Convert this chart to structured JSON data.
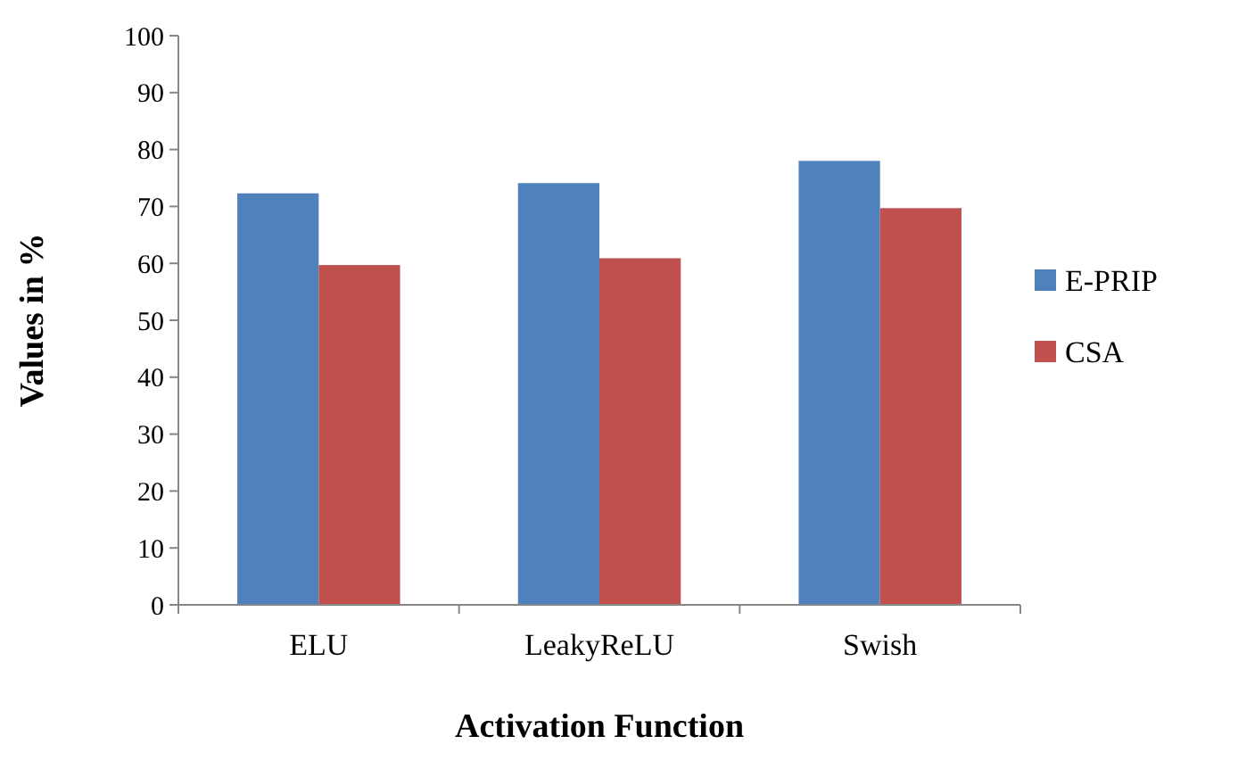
{
  "chart_data": {
    "type": "bar",
    "xlabel": "Activation Function",
    "ylabel": "Values in %",
    "categories": [
      "ELU",
      "LeakyReLU",
      "Swish"
    ],
    "series": [
      {
        "name": "E-PRIP",
        "color": "#4f81bd",
        "values": [
          72.3,
          74.1,
          78
        ]
      },
      {
        "name": "CSA",
        "color": "#c0504d",
        "values": [
          59.7,
          60.9,
          69.7
        ]
      }
    ],
    "ylim": [
      0,
      100
    ],
    "yticks": [
      0,
      10,
      20,
      30,
      40,
      50,
      60,
      70,
      80,
      90,
      100
    ],
    "legend": "right",
    "grid": false
  }
}
